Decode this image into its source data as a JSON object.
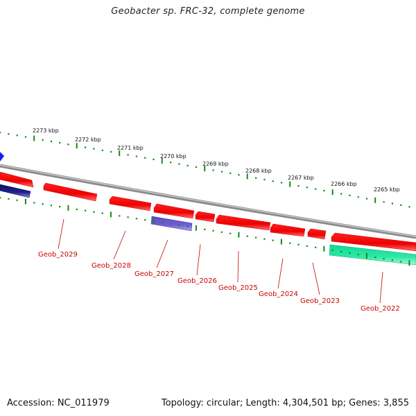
{
  "title": "Geobacter sp. FRC-32, complete genome",
  "footer": {
    "accession": "Accession: NC_011979",
    "summary": "Topology: circular; Length: 4,304,501 bp; Genes: 3,855"
  },
  "scale_ticks": [
    {
      "label": "2273 kbp",
      "position_kbp": 2273
    },
    {
      "label": "2272 kbp",
      "position_kbp": 2272
    },
    {
      "label": "2271 kbp",
      "position_kbp": 2271
    },
    {
      "label": "2270 kbp",
      "position_kbp": 2270
    },
    {
      "label": "2269 kbp",
      "position_kbp": 2269
    },
    {
      "label": "2268 kbp",
      "position_kbp": 2268
    },
    {
      "label": "2267 kbp",
      "position_kbp": 2267
    },
    {
      "label": "2266 kbp",
      "position_kbp": 2266
    },
    {
      "label": "2265 kbp",
      "position_kbp": 2265
    }
  ],
  "gene_labels": [
    {
      "name": "Geob_2029",
      "color": "#cc0000"
    },
    {
      "name": "Geob_2028",
      "color": "#cc0000"
    },
    {
      "name": "Geob_2027",
      "color": "#cc0000"
    },
    {
      "name": "Geob_2026",
      "color": "#cc0000"
    },
    {
      "name": "Geob_2025",
      "color": "#cc0000"
    },
    {
      "name": "Geob_2024",
      "color": "#cc0000"
    },
    {
      "name": "Geob_2023",
      "color": "#cc0000"
    },
    {
      "name": "Geob_2022",
      "color": "#cc0000"
    }
  ],
  "colors": {
    "backbone": "#8a8a8a",
    "cds": "#ff0000",
    "rna": "#6f5fd6",
    "pseudo": "#2ee8a6",
    "dots": "#138a13",
    "label": "#cc0000"
  }
}
